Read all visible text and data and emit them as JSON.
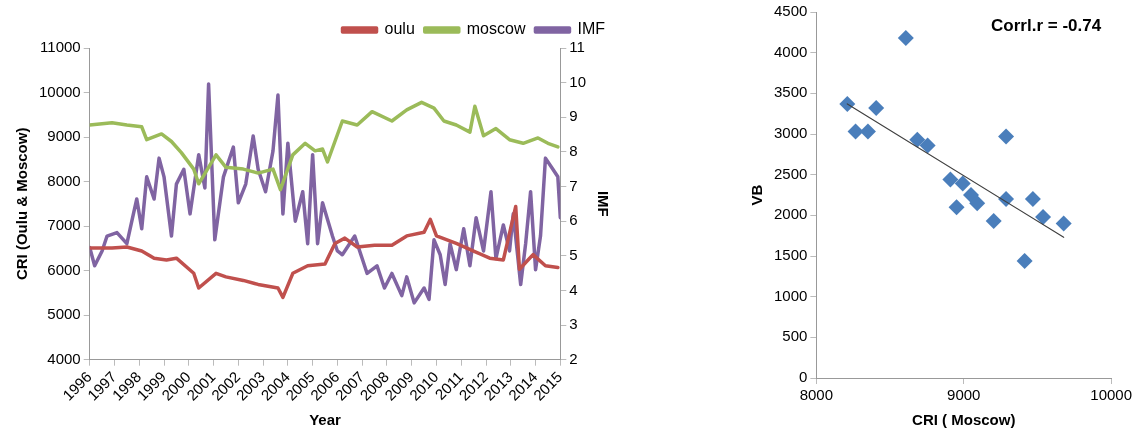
{
  "chart_data": [
    {
      "type": "line",
      "xlabel": "Year",
      "ylabel": "CRI (Oulu & Moscow)",
      "y2label": "IMF",
      "xlim": [
        1996,
        2015
      ],
      "xticks": [
        1996,
        1997,
        1998,
        1999,
        2000,
        2001,
        2002,
        2003,
        2004,
        2005,
        2006,
        2007,
        2008,
        2009,
        2010,
        2011,
        2012,
        2013,
        2014,
        2015
      ],
      "ylim": [
        4000,
        11000
      ],
      "yticks": [
        4000,
        5000,
        6000,
        7000,
        8000,
        9000,
        10000,
        11000
      ],
      "y2lim": [
        2,
        11
      ],
      "y2ticks": [
        2,
        3,
        4,
        5,
        6,
        7,
        8,
        9,
        10,
        11
      ],
      "grid": false,
      "legend": "top right",
      "marker": "none",
      "line_style": "solid",
      "series": [
        {
          "name": "oulu",
          "color": "#c0504d",
          "x": [
            1996.0,
            1996.9,
            1997.5,
            1998.1,
            1998.6,
            1999.1,
            1999.5,
            2000.2,
            2000.4,
            2001.1,
            2001.5,
            2002.2,
            2002.8,
            2003.6,
            2003.8,
            2004.2,
            2004.8,
            2005.5,
            2005.9,
            2006.3,
            2006.8,
            2007.5,
            2008.2,
            2008.8,
            2009.5,
            2009.75,
            2010.0,
            2010.8,
            2011.5,
            2012.15,
            2012.7,
            2013.2,
            2013.35,
            2013.9,
            2014.4,
            2014.9
          ],
          "values": [
            6510,
            6510,
            6530,
            6440,
            6280,
            6240,
            6280,
            5940,
            5610,
            5940,
            5860,
            5780,
            5690,
            5610,
            5400,
            5940,
            6110,
            6150,
            6610,
            6730,
            6530,
            6570,
            6570,
            6780,
            6860,
            7150,
            6780,
            6610,
            6440,
            6280,
            6240,
            7440,
            6030,
            6360,
            6110,
            6070
          ]
        },
        {
          "name": "moscow",
          "color": "#9bbb59",
          "x": [
            1996.0,
            1996.9,
            1997.5,
            1998.1,
            1998.3,
            1998.9,
            1999.3,
            1999.7,
            2000.2,
            2000.4,
            2001.1,
            2001.5,
            2002.2,
            2002.8,
            2003.4,
            2003.7,
            2004.2,
            2004.7,
            2005.1,
            2005.4,
            2005.6,
            2006.2,
            2006.8,
            2007.4,
            2008.2,
            2008.8,
            2009.4,
            2009.9,
            2010.3,
            2010.8,
            2011.35,
            2011.55,
            2011.9,
            2012.4,
            2012.95,
            2013.5,
            2014.1,
            2014.5,
            2014.9
          ],
          "values": [
            9270,
            9320,
            9270,
            9230,
            8940,
            9070,
            8900,
            8650,
            8280,
            7950,
            8600,
            8320,
            8280,
            8190,
            8280,
            7820,
            8600,
            8860,
            8690,
            8730,
            8440,
            9360,
            9270,
            9570,
            9360,
            9610,
            9780,
            9650,
            9360,
            9270,
            9110,
            9690,
            9030,
            9190,
            8940,
            8860,
            8980,
            8860,
            8780
          ]
        },
        {
          "name": "IMF",
          "color": "#8064a2",
          "axis": "y2",
          "x": [
            1996.0,
            1996.2,
            1996.5,
            1996.7,
            1997.1,
            1997.5,
            1997.7,
            1997.9,
            1998.1,
            1998.3,
            1998.6,
            1998.8,
            1999.0,
            1999.3,
            1999.5,
            1999.8,
            2000.05,
            2000.4,
            2000.65,
            2000.8,
            2001.05,
            2001.4,
            2001.8,
            2002.0,
            2002.3,
            2002.6,
            2002.8,
            2003.1,
            2003.4,
            2003.6,
            2003.8,
            2004.0,
            2004.3,
            2004.6,
            2004.8,
            2005.0,
            2005.2,
            2005.4,
            2005.8,
            2006.0,
            2006.2,
            2006.7,
            2007.0,
            2007.2,
            2007.6,
            2007.9,
            2008.2,
            2008.6,
            2008.8,
            2009.1,
            2009.5,
            2009.7,
            2009.9,
            2010.15,
            2010.35,
            2010.55,
            2010.8,
            2011.1,
            2011.35,
            2011.6,
            2011.9,
            2012.2,
            2012.4,
            2012.7,
            2012.95,
            2013.1,
            2013.4,
            2013.6,
            2013.8,
            2014.0,
            2014.2,
            2014.4,
            2014.7,
            2014.9,
            2015.0
          ],
          "values": [
            5.24,
            4.71,
            5.14,
            5.57,
            5.67,
            5.35,
            6.0,
            6.64,
            5.78,
            7.28,
            6.64,
            7.82,
            7.28,
            5.57,
            7.07,
            7.5,
            6.21,
            7.92,
            6.96,
            9.96,
            5.46,
            7.28,
            8.14,
            6.53,
            7.07,
            8.46,
            7.5,
            6.85,
            8.03,
            9.64,
            6.21,
            8.25,
            6.0,
            6.85,
            5.35,
            7.92,
            5.35,
            6.53,
            5.57,
            5.14,
            5.03,
            5.57,
            4.92,
            4.49,
            4.71,
            4.07,
            4.49,
            3.85,
            4.39,
            3.64,
            4.07,
            3.74,
            5.46,
            5.03,
            4.17,
            5.35,
            4.6,
            5.78,
            4.71,
            6.1,
            5.14,
            6.85,
            4.92,
            5.89,
            5.14,
            6.21,
            4.17,
            5.35,
            6.85,
            4.6,
            5.57,
            7.82,
            7.5,
            7.28,
            6.1
          ]
        }
      ]
    },
    {
      "type": "scatter",
      "xlabel": "CRI ( Moscow)",
      "ylabel": "VB",
      "xlim": [
        8000,
        10000
      ],
      "xticks": [
        8000,
        9000,
        10000
      ],
      "ylim": [
        0,
        4500
      ],
      "yticks": [
        0,
        500,
        1000,
        1500,
        2000,
        2500,
        3000,
        3500,
        4000,
        4500
      ],
      "grid": false,
      "marker": "diamond",
      "annotations": [
        "Corrl.r = -0.74"
      ],
      "series": [
        {
          "color": "#4a7ebb",
          "x": [
            8210,
            8266,
            8350,
            8406,
            8607,
            8685,
            8755,
            8909,
            8951,
            8993,
            9049,
            9091,
            9203,
            9287,
            9287,
            9413,
            9469,
            9538,
            9678
          ],
          "values": [
            3370,
            3030,
            3030,
            3320,
            4180,
            2930,
            2860,
            2440,
            2100,
            2390,
            2250,
            2150,
            1930,
            2970,
            2200,
            1440,
            2200,
            1980,
            1900
          ]
        },
        {
          "type": "line",
          "color": "#404040",
          "marker": "none",
          "x": [
            8210,
            9678
          ],
          "values": [
            3370,
            1730
          ]
        }
      ]
    }
  ]
}
